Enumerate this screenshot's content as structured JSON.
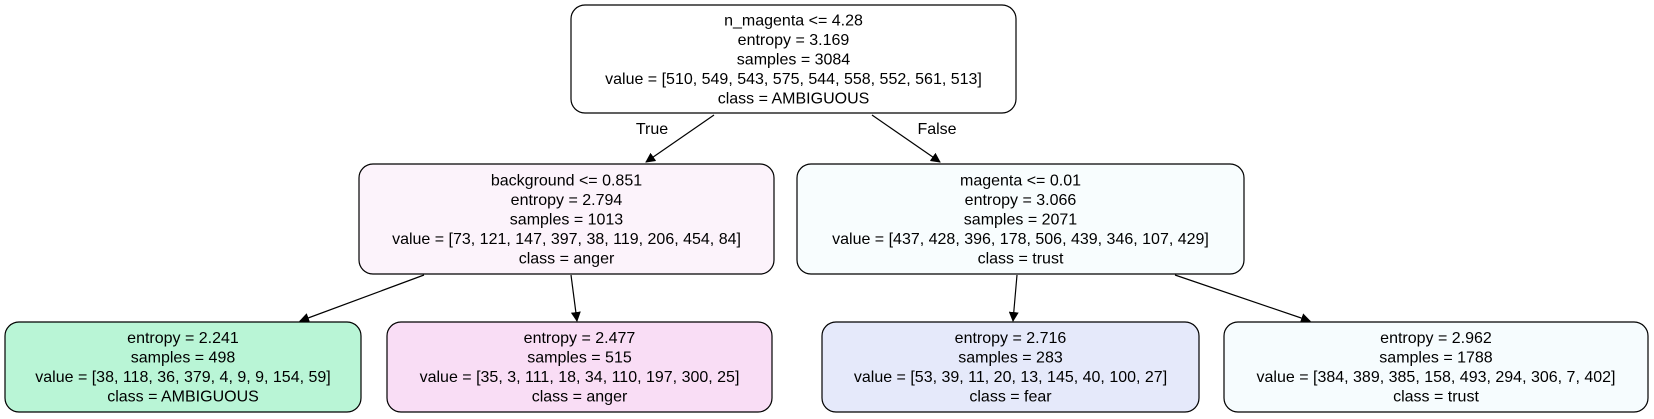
{
  "nodes": [
    {
      "id": "root",
      "fill": "#ffffff",
      "lines": [
        "n_magenta <= 4.28",
        "entropy = 3.169",
        "samples = 3084",
        "value = [510, 549, 543, 575, 544, 558, 552, 561, 513]",
        "class = AMBIGUOUS"
      ]
    },
    {
      "id": "left",
      "fill": "#fcf3fb",
      "lines": [
        "background <= 0.851",
        "entropy = 2.794",
        "samples = 1013",
        "value = [73, 121, 147, 397, 38, 119, 206, 454, 84]",
        "class = anger"
      ]
    },
    {
      "id": "right",
      "fill": "#f8fdfe",
      "lines": [
        "magenta <= 0.01",
        "entropy = 3.066",
        "samples = 2071",
        "value = [437, 428, 396, 178, 506, 439, 346, 107, 429]",
        "class = trust"
      ]
    },
    {
      "id": "leaf1",
      "fill": "#b9f5d6",
      "lines": [
        "entropy = 2.241",
        "samples = 498",
        "value = [38, 118, 36, 379, 4, 9, 9, 154, 59]",
        "class = AMBIGUOUS"
      ]
    },
    {
      "id": "leaf2",
      "fill": "#f9ddf5",
      "lines": [
        "entropy = 2.477",
        "samples = 515",
        "value = [35, 3, 111, 18, 34, 110, 197, 300, 25]",
        "class = anger"
      ]
    },
    {
      "id": "leaf3",
      "fill": "#e5e9fa",
      "lines": [
        "entropy = 2.716",
        "samples = 283",
        "value = [53, 39, 11, 20, 13, 145, 40, 100, 27]",
        "class = fear"
      ]
    },
    {
      "id": "leaf4",
      "fill": "#f6fcfe",
      "lines": [
        "entropy = 2.962",
        "samples = 1788",
        "value = [384, 389, 385, 158, 493, 294, 306, 7, 402]",
        "class = trust"
      ]
    }
  ],
  "edges": [
    {
      "from": "root",
      "to": "left",
      "label": "True"
    },
    {
      "from": "root",
      "to": "right",
      "label": "False"
    },
    {
      "from": "left",
      "to": "leaf1",
      "label": ""
    },
    {
      "from": "left",
      "to": "leaf2",
      "label": ""
    },
    {
      "from": "right",
      "to": "leaf3",
      "label": ""
    },
    {
      "from": "right",
      "to": "leaf4",
      "label": ""
    }
  ]
}
